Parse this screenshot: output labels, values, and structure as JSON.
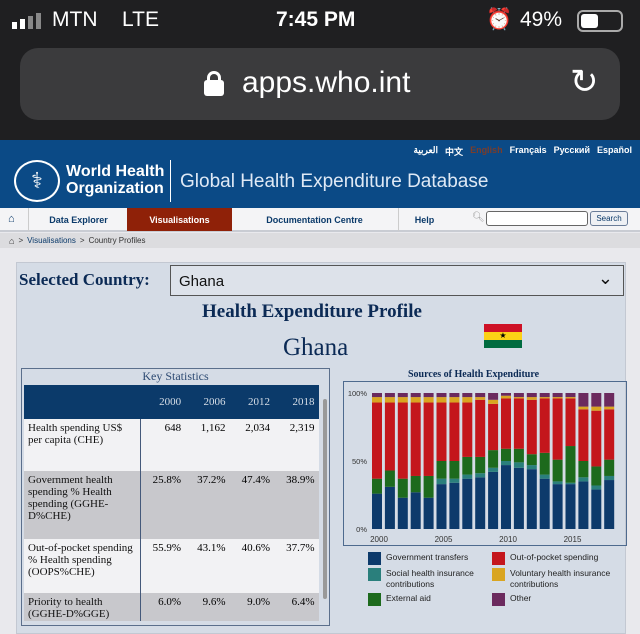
{
  "status": {
    "carrier": "MTN",
    "network": "LTE",
    "time": "7:45 PM",
    "battery": "49%"
  },
  "browser": {
    "url": "apps.who.int"
  },
  "header": {
    "org_line1": "World Health",
    "org_line2": "Organization",
    "title": "Global Health Expenditure Database",
    "languages": [
      "العربية",
      "中文",
      "English",
      "Français",
      "Русский",
      "Español"
    ]
  },
  "nav": {
    "items": [
      "Data Explorer",
      "Visualisations",
      "Documentation Centre",
      "Help"
    ],
    "active": "Visualisations",
    "search_button": "Search",
    "search_value": ""
  },
  "breadcrumb": {
    "link": "Visualisations",
    "current": "Country Profiles",
    "sep": ">"
  },
  "main": {
    "selected_label": "Selected Country:",
    "country": "Ghana",
    "profile_title": "Health Expenditure Profile",
    "country_title": "Ghana"
  },
  "key_stats": {
    "title": "Key Statistics",
    "years": [
      "2000",
      "2006",
      "2012",
      "2018"
    ],
    "rows": [
      {
        "label": "Health spending US$ per capita (CHE)",
        "values": [
          "648",
          "1,162",
          "2,034",
          "2,319"
        ]
      },
      {
        "label": "Government health spending % Health spending (GGHE-D%CHE)",
        "values": [
          "25.8%",
          "37.2%",
          "47.4%",
          "38.9%"
        ]
      },
      {
        "label": "Out-of-pocket spending % Health spending (OOPS%CHE)",
        "values": [
          "55.9%",
          "43.1%",
          "40.6%",
          "37.7%"
        ]
      },
      {
        "label": "Priority to health (GGHE-D%GGE)",
        "values": [
          "6.0%",
          "9.6%",
          "9.0%",
          "6.4%"
        ]
      }
    ]
  },
  "chart_data": {
    "type": "bar",
    "stacked": true,
    "title": "Sources of Health Expenditure",
    "x": [
      2000,
      2001,
      2002,
      2003,
      2004,
      2005,
      2006,
      2007,
      2008,
      2009,
      2010,
      2011,
      2012,
      2013,
      2014,
      2015,
      2016,
      2017,
      2018
    ],
    "xticks": [
      "2000",
      "2005",
      "2010",
      "2015"
    ],
    "yticks": [
      "0%",
      "50%",
      "100%"
    ],
    "ylim": [
      0,
      100
    ],
    "series": [
      {
        "name": "Government transfers",
        "color": "#0d3a6b",
        "values": [
          26,
          31,
          23,
          27,
          23,
          33,
          34,
          37,
          38,
          42,
          47,
          45,
          44,
          37,
          33,
          33,
          35,
          29,
          36
        ]
      },
      {
        "name": "Social health insurance contributions",
        "color": "#2a7f7c",
        "values": [
          0,
          0,
          0,
          0,
          0,
          4,
          3,
          3,
          3,
          3,
          3,
          4,
          3,
          3,
          2,
          1,
          3,
          3,
          3
        ]
      },
      {
        "name": "External aid",
        "color": "#1d6a1d",
        "values": [
          11,
          12,
          14,
          12,
          16,
          13,
          13,
          13,
          12,
          13,
          9,
          10,
          8,
          16,
          16,
          27,
          12,
          14,
          12
        ]
      },
      {
        "name": "Out-of-pocket spending",
        "color": "#c4161c",
        "values": [
          56,
          50,
          56,
          54,
          54,
          43,
          43,
          40,
          42,
          34,
          37,
          37,
          40,
          40,
          45,
          35,
          38,
          41,
          37
        ]
      },
      {
        "name": "Voluntary health insurance contributions",
        "color": "#d9a521",
        "values": [
          4,
          4,
          4,
          4,
          4,
          4,
          4,
          4,
          2,
          3,
          2,
          1,
          2,
          1,
          1,
          1,
          2,
          3,
          2
        ]
      },
      {
        "name": "Other",
        "color": "#6b2a5e",
        "values": [
          3,
          3,
          3,
          3,
          3,
          3,
          3,
          3,
          3,
          5,
          2,
          3,
          3,
          3,
          3,
          3,
          10,
          10,
          10
        ]
      }
    ]
  }
}
